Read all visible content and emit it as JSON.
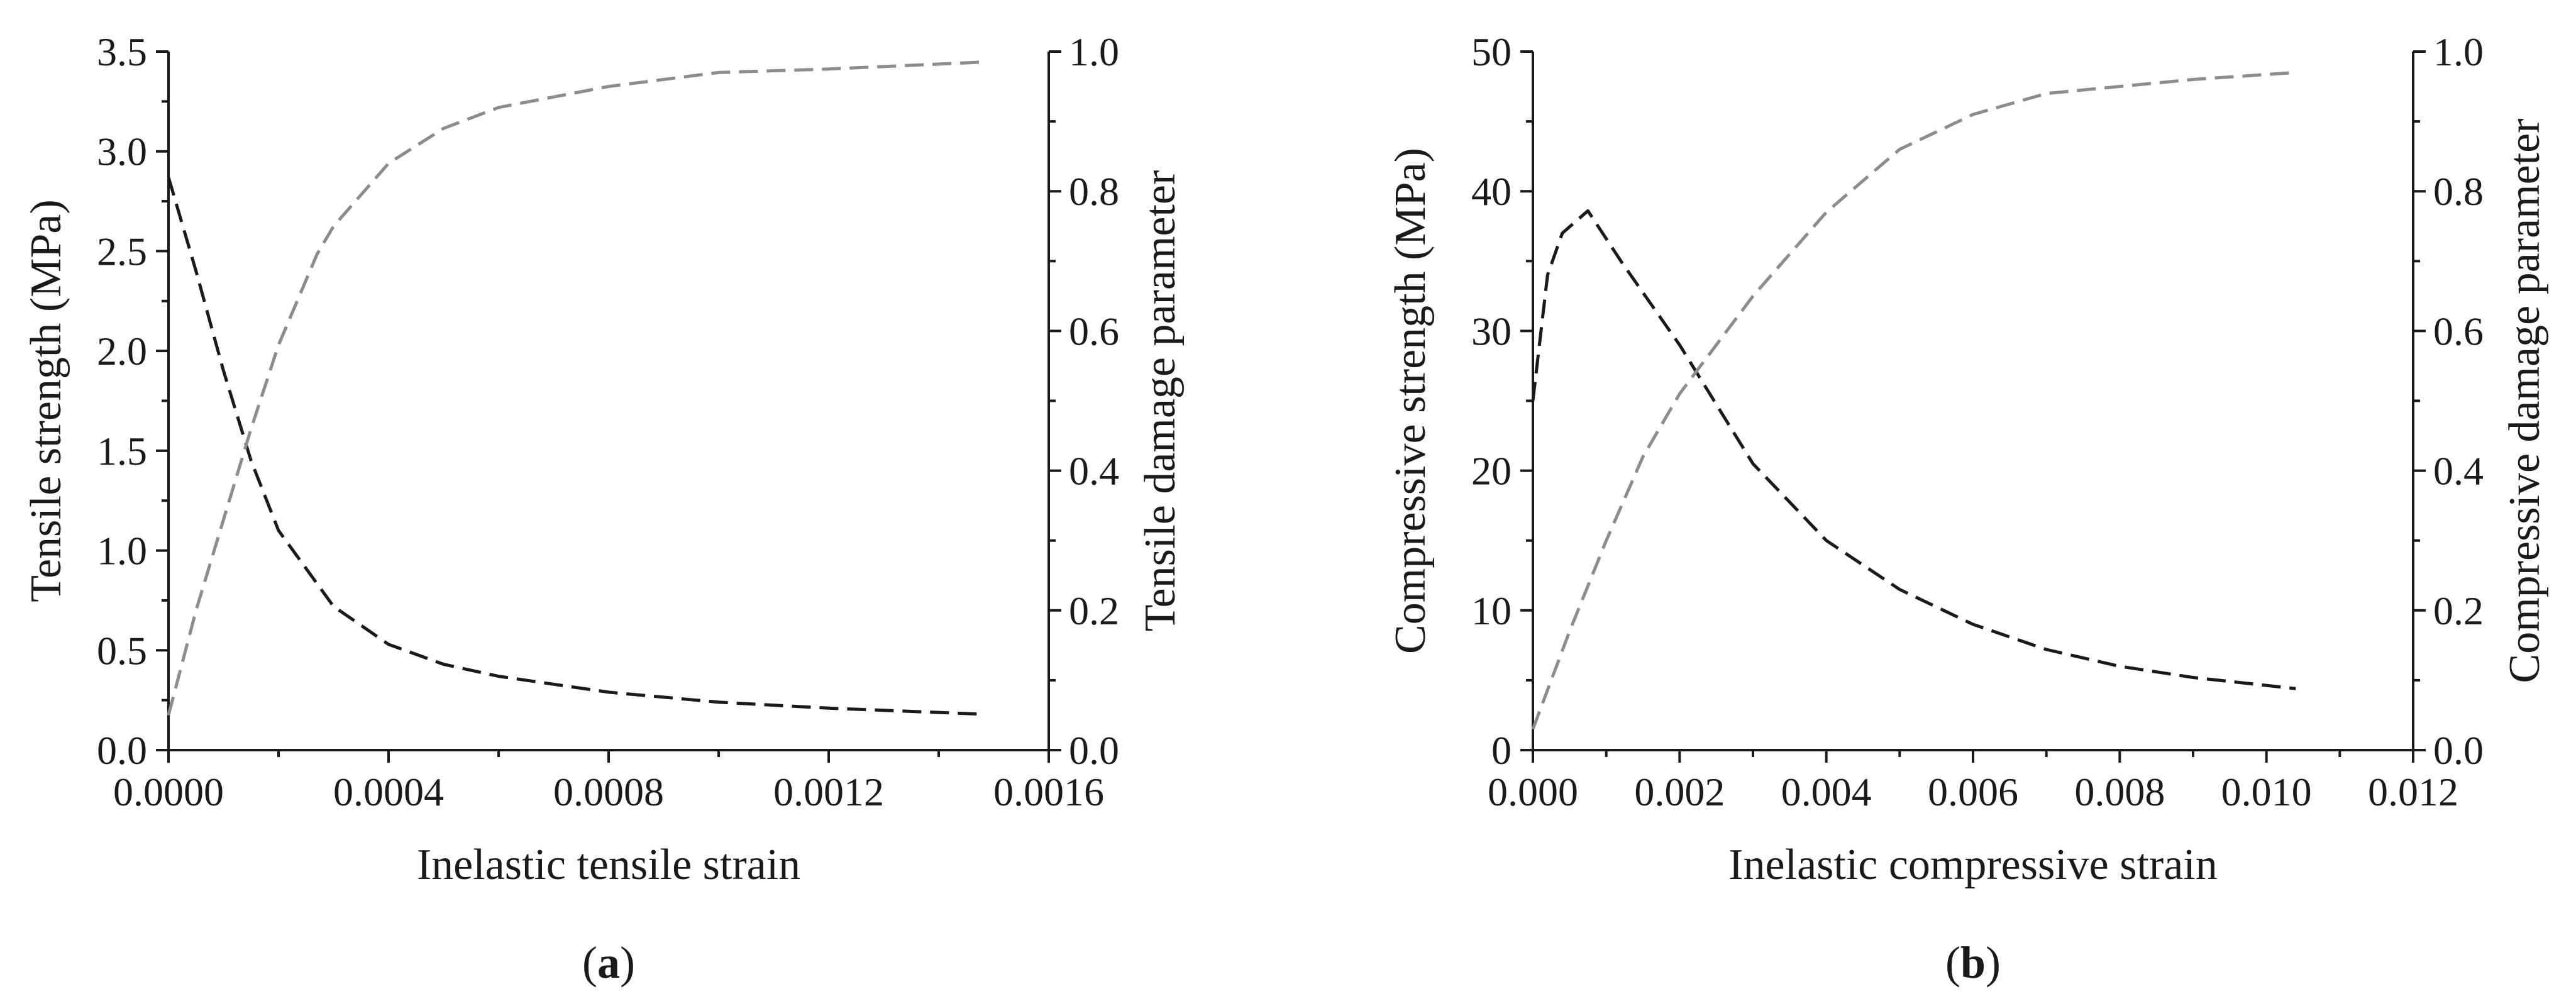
{
  "chart_data": [
    {
      "type": "line",
      "panel_label": "a",
      "xlabel": "Inelastic tensile strain",
      "ylabel": "Tensile strength (MPa)",
      "y2label": "Tensile damage parameter",
      "xlim": [
        0,
        0.0016
      ],
      "ylim": [
        0,
        3.5
      ],
      "y2lim": [
        0,
        1.0
      ],
      "xticks": [
        "0.0000",
        "0.0004",
        "0.0008",
        "0.0012",
        "0.0016"
      ],
      "yticks": [
        "0.0",
        "0.5",
        "1.0",
        "1.5",
        "2.0",
        "2.5",
        "3.0",
        "3.5"
      ],
      "y2ticks": [
        "0.0",
        "0.2",
        "0.4",
        "0.6",
        "0.8",
        "1.0"
      ],
      "series": [
        {
          "name": "Tensile strength",
          "axis": "left",
          "color": "#1a1a1a",
          "x": [
            0,
            5e-05,
            0.0001,
            0.00015,
            0.0002,
            0.0003,
            0.0004,
            0.0005,
            0.0006,
            0.0008,
            0.001,
            0.0012,
            0.00148
          ],
          "y": [
            2.87,
            2.4,
            1.9,
            1.45,
            1.1,
            0.72,
            0.53,
            0.43,
            0.37,
            0.29,
            0.24,
            0.21,
            0.18
          ]
        },
        {
          "name": "Tensile damage parameter",
          "axis": "right",
          "color": "#8c8c8c",
          "x": [
            0,
            5e-05,
            0.0001,
            0.00015,
            0.0002,
            0.00027,
            0.0003,
            0.0004,
            0.0005,
            0.0006,
            0.0008,
            0.001,
            0.0012,
            0.00148
          ],
          "y": [
            0.05,
            0.2,
            0.33,
            0.46,
            0.58,
            0.71,
            0.75,
            0.84,
            0.89,
            0.92,
            0.95,
            0.97,
            0.975,
            0.985
          ]
        }
      ]
    },
    {
      "type": "line",
      "panel_label": "b",
      "xlabel": "Inelastic compressive strain",
      "ylabel": "Compressive strength (MPa)",
      "y2label": "Compressive damage parameter",
      "xlim": [
        0,
        0.012
      ],
      "ylim": [
        0,
        50
      ],
      "y2lim": [
        0,
        1.0
      ],
      "xticks": [
        "0.000",
        "0.002",
        "0.004",
        "0.006",
        "0.008",
        "0.010",
        "0.012"
      ],
      "yticks": [
        "0",
        "10",
        "20",
        "30",
        "40",
        "50"
      ],
      "y2ticks": [
        "0.0",
        "0.2",
        "0.4",
        "0.6",
        "0.8",
        "1.0"
      ],
      "series": [
        {
          "name": "Compressive strength",
          "axis": "left",
          "color": "#1a1a1a",
          "x": [
            0,
            0.0002,
            0.0004,
            0.00075,
            0.0012,
            0.002,
            0.003,
            0.004,
            0.005,
            0.006,
            0.007,
            0.008,
            0.009,
            0.0104
          ],
          "y": [
            25,
            34,
            37,
            38.6,
            35,
            29,
            20.5,
            15,
            11.5,
            9,
            7.2,
            6,
            5.2,
            4.4
          ]
        },
        {
          "name": "Compressive damage parameter",
          "axis": "right",
          "color": "#8c8c8c",
          "x": [
            0,
            0.0005,
            0.001,
            0.0015,
            0.002,
            0.0025,
            0.003,
            0.004,
            0.005,
            0.006,
            0.007,
            0.008,
            0.009,
            0.0104
          ],
          "y": [
            0.03,
            0.17,
            0.3,
            0.42,
            0.51,
            0.58,
            0.65,
            0.77,
            0.86,
            0.91,
            0.94,
            0.95,
            0.96,
            0.97
          ]
        }
      ]
    }
  ]
}
